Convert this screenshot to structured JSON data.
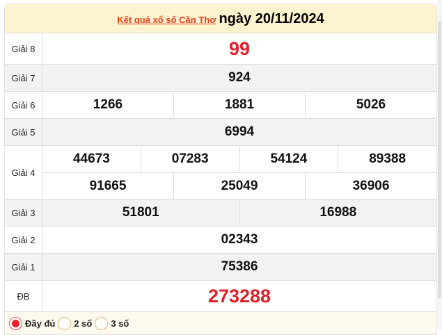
{
  "header": {
    "link": "Kết quả xổ số Cần Thơ",
    "date": "ngày 20/11/2024"
  },
  "prizes": [
    {
      "label": "Giải 8",
      "rows": [
        [
          "99"
        ]
      ],
      "red": true,
      "gray": false
    },
    {
      "label": "Giải 7",
      "rows": [
        [
          "924"
        ]
      ],
      "gray": true
    },
    {
      "label": "Giải 6",
      "rows": [
        [
          "1266",
          "1881",
          "5026"
        ]
      ],
      "gray": false
    },
    {
      "label": "Giải 5",
      "rows": [
        [
          "6994"
        ]
      ],
      "gray": true
    },
    {
      "label": "Giải 4",
      "rows": [
        [
          "44673",
          "07283",
          "54124",
          "89388"
        ],
        [
          "91665",
          "25049",
          "36906"
        ]
      ],
      "gray": false
    },
    {
      "label": "Giải 3",
      "rows": [
        [
          "51801",
          "16988"
        ]
      ],
      "gray": true
    },
    {
      "label": "Giải 2",
      "rows": [
        [
          "02343"
        ]
      ],
      "gray": false
    },
    {
      "label": "Giải 1",
      "rows": [
        [
          "75386"
        ]
      ],
      "gray": true
    },
    {
      "label": "ĐB",
      "rows": [
        [
          "273288"
        ]
      ],
      "red": true,
      "gray": false
    }
  ],
  "options": [
    {
      "label": "Đầy đủ",
      "checked": true
    },
    {
      "label": "2 số",
      "checked": false
    },
    {
      "label": "3 số",
      "checked": false
    }
  ],
  "colors": {
    "accent_red": "#e0202a",
    "header_bg": "#fdf3cf",
    "link": "#e8401c"
  }
}
